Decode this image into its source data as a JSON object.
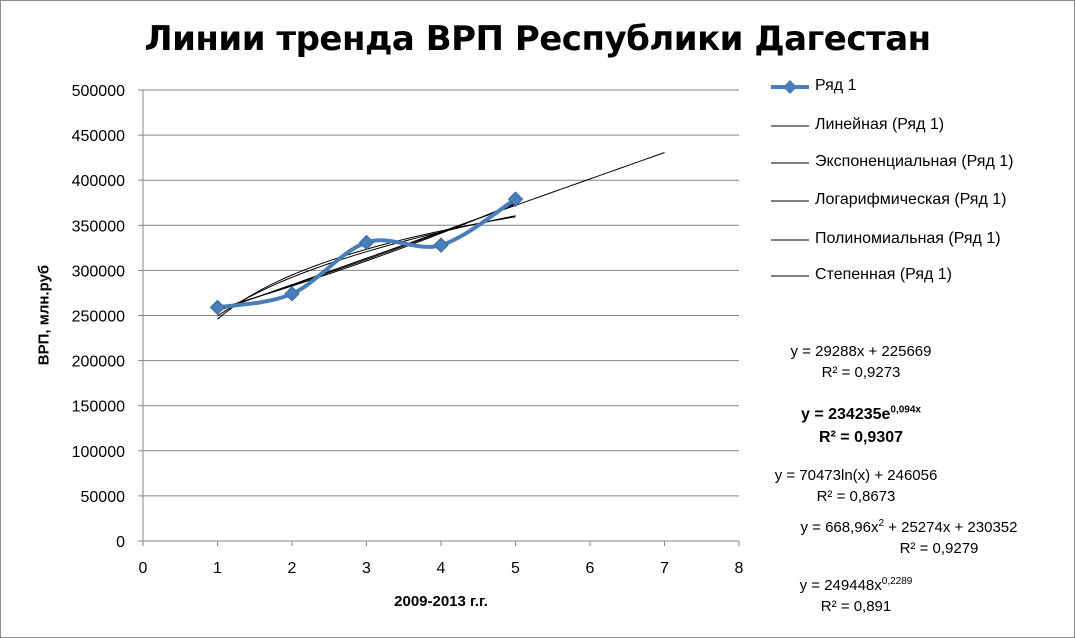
{
  "chart_data": {
    "type": "line",
    "title": "Линии тренда ВРП Республики Дагестан",
    "xlabel": "2009-2013 г.г.",
    "ylabel": "ВРП, млн.руб",
    "xlim": [
      0,
      8
    ],
    "ylim": [
      0,
      500000
    ],
    "x_ticks": [
      "0",
      "1",
      "2",
      "3",
      "4",
      "5",
      "6",
      "7",
      "8"
    ],
    "y_ticks": [
      "0",
      "50000",
      "100000",
      "150000",
      "200000",
      "250000",
      "300000",
      "350000",
      "400000",
      "450000",
      "500000"
    ],
    "grid": "horizontal major gridlines",
    "legend_position": "right",
    "colors": {
      "series": "#4a7ebb",
      "trend": "#000000",
      "grid": "#868686"
    },
    "series": [
      {
        "name": "Ряд 1",
        "x": [
          1,
          2,
          3,
          4,
          5
        ],
        "values": [
          259000,
          274000,
          331000,
          328000,
          379000
        ],
        "style": "smoothed line with diamond markers"
      }
    ],
    "trendlines": [
      {
        "name": "Линейная (Ряд 1)",
        "type": "linear",
        "x_range": [
          1,
          7
        ],
        "coef": [
          29288,
          225669
        ],
        "equation": "y = 29288x + 225669",
        "r2_text": "R² = 0,9273",
        "bold": false
      },
      {
        "name": "Экспоненциальная (Ряд 1)",
        "type": "exponential",
        "x_range": [
          1,
          5
        ],
        "coef": [
          234235,
          0.094
        ],
        "equation_base": "y = 234235e",
        "equation_sup": "0,094x",
        "r2_text": "R² = 0,9307",
        "bold": true
      },
      {
        "name": "Логарифмическая (Ряд 1)",
        "type": "logarithmic",
        "x_range": [
          1,
          5
        ],
        "coef": [
          70473,
          246056
        ],
        "equation": "y = 70473ln(x) + 246056",
        "r2_text": "R² = 0,8673",
        "bold": false
      },
      {
        "name": "Полиномиальная (Ряд 1)",
        "type": "polynomial",
        "x_range": [
          1,
          5
        ],
        "coef": [
          668.96,
          25274,
          230352
        ],
        "equation_base": "y = 668,96x",
        "equation_sup": "2",
        "equation_rest": " + 25274x + 230352",
        "r2_text": "R² = 0,9279",
        "bold": false
      },
      {
        "name": "Степенная (Ряд 1)",
        "type": "power",
        "x_range": [
          1,
          5
        ],
        "coef": [
          249448,
          0.2289
        ],
        "equation_base": "y = 249448x",
        "equation_sup": "0,2289",
        "r2_text": "R² = 0,891",
        "bold": false
      }
    ]
  }
}
